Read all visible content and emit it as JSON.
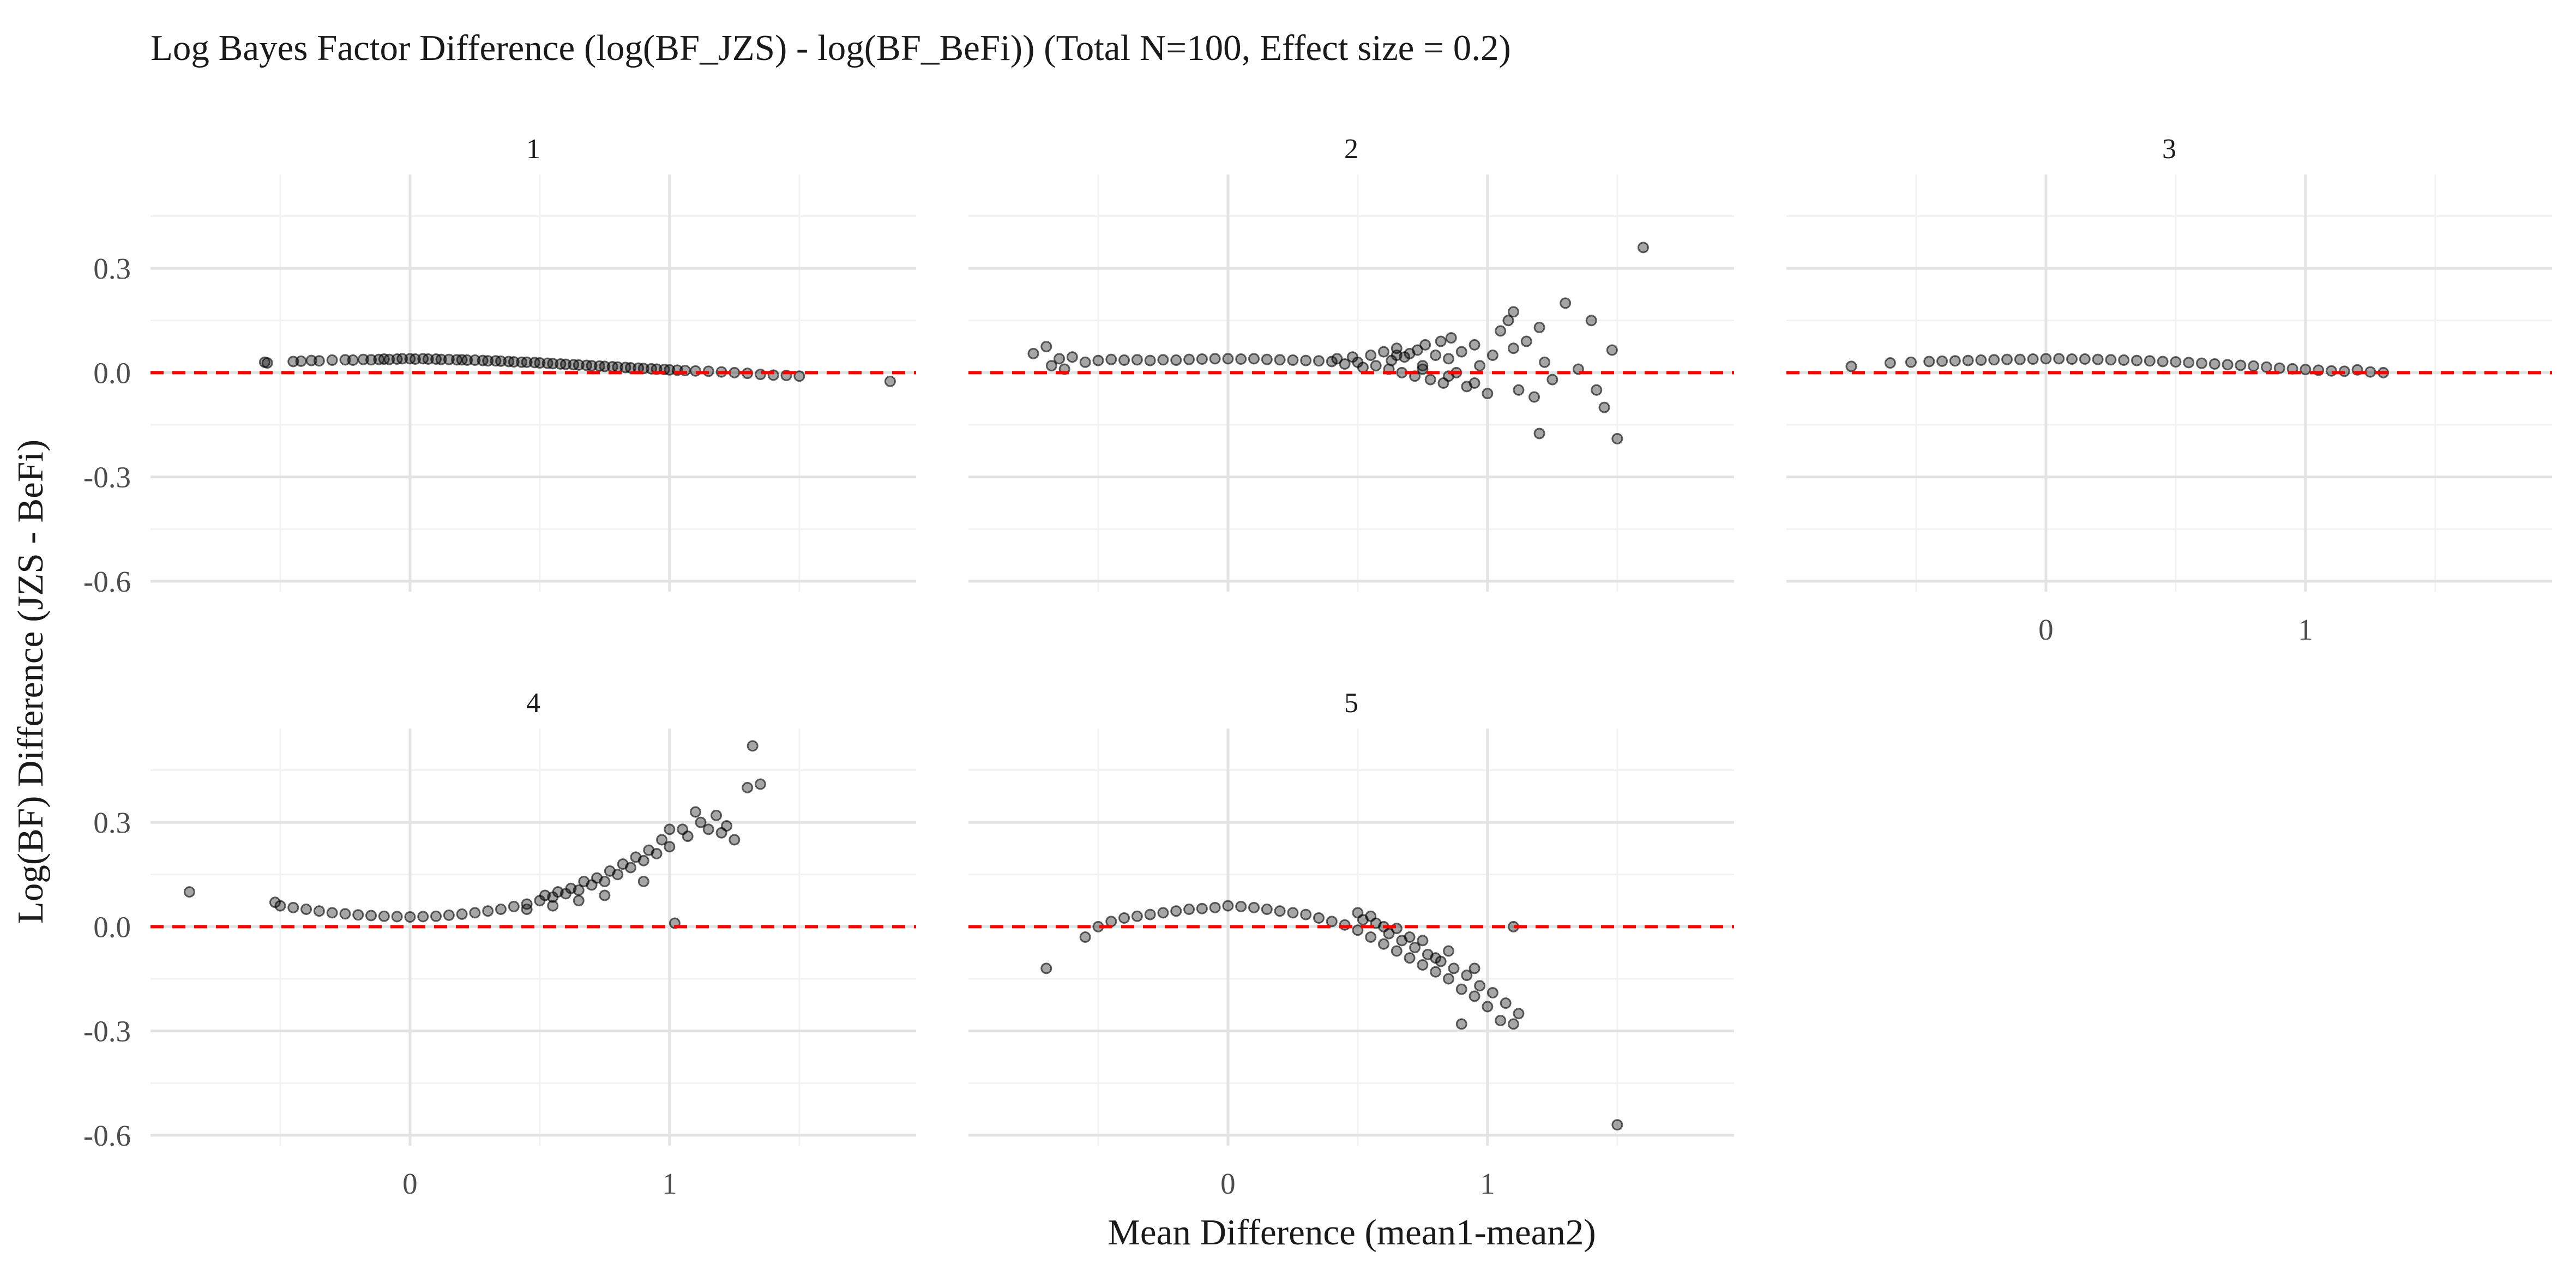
{
  "chart_data": {
    "type": "scatter",
    "title": "Log Bayes Factor Difference (log(BF_JZS) - log(BF_BeFi)) (Total N=100, Effect size = 0.2)",
    "xlabel": "Mean Difference (mean1-mean2)",
    "ylabel": "Log(BF) Difference (JZS - BeFi)",
    "xlim": [
      -1.0,
      1.95
    ],
    "ylim": [
      -0.63,
      0.57
    ],
    "x_ticks": [
      0,
      1
    ],
    "x_tick_labels": [
      "0",
      "1"
    ],
    "y_ticks": [
      0.3,
      0.0,
      -0.3,
      -0.6
    ],
    "y_tick_labels": [
      "0.3",
      "0.0",
      "-0.3",
      "-0.6"
    ],
    "grid": true,
    "reference_line": {
      "y": 0.0,
      "color": "#ff0000",
      "style": "dashed"
    },
    "point_color": "#000000",
    "point_opacity": 0.35,
    "panels": [
      {
        "label": "1",
        "points": [
          [
            -0.56,
            0.03
          ],
          [
            -0.55,
            0.028
          ],
          [
            -0.45,
            0.032
          ],
          [
            -0.42,
            0.033
          ],
          [
            -0.38,
            0.035
          ],
          [
            -0.35,
            0.034
          ],
          [
            -0.3,
            0.036
          ],
          [
            -0.25,
            0.037
          ],
          [
            -0.22,
            0.036
          ],
          [
            -0.18,
            0.038
          ],
          [
            -0.15,
            0.037
          ],
          [
            -0.12,
            0.038
          ],
          [
            -0.1,
            0.039
          ],
          [
            -0.08,
            0.038
          ],
          [
            -0.05,
            0.039
          ],
          [
            -0.03,
            0.04
          ],
          [
            0.0,
            0.04
          ],
          [
            0.02,
            0.039
          ],
          [
            0.05,
            0.04
          ],
          [
            0.07,
            0.039
          ],
          [
            0.1,
            0.039
          ],
          [
            0.12,
            0.038
          ],
          [
            0.15,
            0.038
          ],
          [
            0.18,
            0.037
          ],
          [
            0.2,
            0.037
          ],
          [
            0.22,
            0.036
          ],
          [
            0.25,
            0.036
          ],
          [
            0.28,
            0.035
          ],
          [
            0.3,
            0.034
          ],
          [
            0.33,
            0.034
          ],
          [
            0.35,
            0.033
          ],
          [
            0.38,
            0.032
          ],
          [
            0.4,
            0.031
          ],
          [
            0.43,
            0.03
          ],
          [
            0.45,
            0.03
          ],
          [
            0.48,
            0.029
          ],
          [
            0.5,
            0.028
          ],
          [
            0.53,
            0.027
          ],
          [
            0.55,
            0.026
          ],
          [
            0.58,
            0.025
          ],
          [
            0.6,
            0.024
          ],
          [
            0.63,
            0.023
          ],
          [
            0.65,
            0.022
          ],
          [
            0.68,
            0.021
          ],
          [
            0.7,
            0.02
          ],
          [
            0.73,
            0.019
          ],
          [
            0.75,
            0.018
          ],
          [
            0.78,
            0.017
          ],
          [
            0.8,
            0.016
          ],
          [
            0.83,
            0.015
          ],
          [
            0.85,
            0.014
          ],
          [
            0.88,
            0.013
          ],
          [
            0.9,
            0.012
          ],
          [
            0.93,
            0.011
          ],
          [
            0.95,
            0.01
          ],
          [
            0.98,
            0.009
          ],
          [
            1.0,
            0.008
          ],
          [
            1.03,
            0.007
          ],
          [
            1.06,
            0.006
          ],
          [
            1.1,
            0.005
          ],
          [
            1.15,
            0.004
          ],
          [
            1.2,
            0.002
          ],
          [
            1.25,
            0.0
          ],
          [
            1.3,
            -0.002
          ],
          [
            1.35,
            -0.005
          ],
          [
            1.4,
            -0.007
          ],
          [
            1.45,
            -0.008
          ],
          [
            1.5,
            -0.01
          ],
          [
            1.85,
            -0.025
          ]
        ]
      },
      {
        "label": "2",
        "points": [
          [
            -0.75,
            0.055
          ],
          [
            -0.7,
            0.075
          ],
          [
            -0.68,
            0.02
          ],
          [
            -0.65,
            0.04
          ],
          [
            -0.63,
            0.01
          ],
          [
            -0.6,
            0.045
          ],
          [
            -0.55,
            0.03
          ],
          [
            -0.5,
            0.035
          ],
          [
            -0.45,
            0.038
          ],
          [
            -0.4,
            0.036
          ],
          [
            -0.35,
            0.037
          ],
          [
            -0.3,
            0.035
          ],
          [
            -0.25,
            0.037
          ],
          [
            -0.2,
            0.036
          ],
          [
            -0.15,
            0.038
          ],
          [
            -0.1,
            0.039
          ],
          [
            -0.05,
            0.04
          ],
          [
            0.0,
            0.04
          ],
          [
            0.05,
            0.039
          ],
          [
            0.1,
            0.04
          ],
          [
            0.15,
            0.038
          ],
          [
            0.2,
            0.037
          ],
          [
            0.25,
            0.036
          ],
          [
            0.3,
            0.035
          ],
          [
            0.35,
            0.034
          ],
          [
            0.4,
            0.032
          ],
          [
            0.42,
            0.04
          ],
          [
            0.45,
            0.025
          ],
          [
            0.48,
            0.045
          ],
          [
            0.5,
            0.03
          ],
          [
            0.52,
            0.015
          ],
          [
            0.55,
            0.05
          ],
          [
            0.57,
            0.02
          ],
          [
            0.6,
            0.06
          ],
          [
            0.62,
            0.01
          ],
          [
            0.63,
            0.035
          ],
          [
            0.65,
            0.07
          ],
          [
            0.67,
            0.0
          ],
          [
            0.68,
            0.045
          ],
          [
            0.7,
            0.055
          ],
          [
            0.72,
            -0.01
          ],
          [
            0.73,
            0.065
          ],
          [
            0.75,
            0.02
          ],
          [
            0.76,
            0.08
          ],
          [
            0.78,
            -0.02
          ],
          [
            0.8,
            0.05
          ],
          [
            0.82,
            0.09
          ],
          [
            0.83,
            -0.03
          ],
          [
            0.85,
            0.04
          ],
          [
            0.86,
            0.1
          ],
          [
            0.88,
            0.0
          ],
          [
            0.9,
            0.06
          ],
          [
            0.92,
            -0.04
          ],
          [
            0.95,
            0.08
          ],
          [
            0.97,
            0.02
          ],
          [
            1.0,
            -0.06
          ],
          [
            1.02,
            0.05
          ],
          [
            1.05,
            0.12
          ],
          [
            1.08,
            0.15
          ],
          [
            1.1,
            0.175
          ],
          [
            1.12,
            -0.05
          ],
          [
            1.15,
            0.09
          ],
          [
            1.18,
            -0.07
          ],
          [
            1.2,
            0.13
          ],
          [
            1.22,
            0.03
          ],
          [
            1.25,
            -0.02
          ],
          [
            1.3,
            0.2
          ],
          [
            1.35,
            0.01
          ],
          [
            1.4,
            0.15
          ],
          [
            1.42,
            -0.05
          ],
          [
            1.45,
            -0.1
          ],
          [
            1.48,
            0.065
          ],
          [
            1.5,
            -0.19
          ],
          [
            1.6,
            0.36
          ],
          [
            1.2,
            -0.175
          ],
          [
            1.1,
            0.07
          ],
          [
            0.95,
            -0.03
          ],
          [
            0.85,
            -0.01
          ],
          [
            0.75,
            0.01
          ],
          [
            0.65,
            0.05
          ]
        ]
      },
      {
        "label": "3",
        "points": [
          [
            -0.75,
            0.018
          ],
          [
            -0.6,
            0.028
          ],
          [
            -0.52,
            0.03
          ],
          [
            -0.45,
            0.032
          ],
          [
            -0.4,
            0.033
          ],
          [
            -0.35,
            0.034
          ],
          [
            -0.3,
            0.035
          ],
          [
            -0.25,
            0.036
          ],
          [
            -0.2,
            0.037
          ],
          [
            -0.15,
            0.038
          ],
          [
            -0.1,
            0.038
          ],
          [
            -0.05,
            0.039
          ],
          [
            0.0,
            0.04
          ],
          [
            0.05,
            0.04
          ],
          [
            0.1,
            0.039
          ],
          [
            0.15,
            0.039
          ],
          [
            0.2,
            0.038
          ],
          [
            0.25,
            0.037
          ],
          [
            0.3,
            0.036
          ],
          [
            0.35,
            0.035
          ],
          [
            0.4,
            0.034
          ],
          [
            0.45,
            0.032
          ],
          [
            0.5,
            0.031
          ],
          [
            0.55,
            0.029
          ],
          [
            0.6,
            0.027
          ],
          [
            0.65,
            0.025
          ],
          [
            0.7,
            0.023
          ],
          [
            0.75,
            0.021
          ],
          [
            0.8,
            0.019
          ],
          [
            0.85,
            0.016
          ],
          [
            0.9,
            0.013
          ],
          [
            0.95,
            0.011
          ],
          [
            1.0,
            0.009
          ],
          [
            1.05,
            0.007
          ],
          [
            1.1,
            0.005
          ],
          [
            1.15,
            0.004
          ],
          [
            1.2,
            0.008
          ],
          [
            1.25,
            0.002
          ],
          [
            1.3,
            0.0
          ]
        ]
      },
      {
        "label": "4",
        "points": [
          [
            -0.85,
            0.1
          ],
          [
            -0.52,
            0.07
          ],
          [
            -0.5,
            0.06
          ],
          [
            -0.45,
            0.055
          ],
          [
            -0.4,
            0.05
          ],
          [
            -0.35,
            0.045
          ],
          [
            -0.3,
            0.04
          ],
          [
            -0.25,
            0.037
          ],
          [
            -0.2,
            0.034
          ],
          [
            -0.15,
            0.032
          ],
          [
            -0.1,
            0.03
          ],
          [
            -0.05,
            0.029
          ],
          [
            0.0,
            0.028
          ],
          [
            0.05,
            0.029
          ],
          [
            0.1,
            0.03
          ],
          [
            0.15,
            0.033
          ],
          [
            0.2,
            0.036
          ],
          [
            0.25,
            0.04
          ],
          [
            0.3,
            0.045
          ],
          [
            0.35,
            0.05
          ],
          [
            0.4,
            0.058
          ],
          [
            0.45,
            0.065
          ],
          [
            0.5,
            0.075
          ],
          [
            0.52,
            0.09
          ],
          [
            0.55,
            0.085
          ],
          [
            0.57,
            0.1
          ],
          [
            0.6,
            0.095
          ],
          [
            0.62,
            0.11
          ],
          [
            0.65,
            0.105
          ],
          [
            0.67,
            0.13
          ],
          [
            0.7,
            0.12
          ],
          [
            0.72,
            0.14
          ],
          [
            0.75,
            0.13
          ],
          [
            0.77,
            0.16
          ],
          [
            0.8,
            0.15
          ],
          [
            0.82,
            0.18
          ],
          [
            0.85,
            0.17
          ],
          [
            0.87,
            0.2
          ],
          [
            0.9,
            0.19
          ],
          [
            0.92,
            0.22
          ],
          [
            0.95,
            0.21
          ],
          [
            0.97,
            0.25
          ],
          [
            1.0,
            0.23
          ],
          [
            1.02,
            0.01
          ],
          [
            1.05,
            0.28
          ],
          [
            1.07,
            0.26
          ],
          [
            1.1,
            0.33
          ],
          [
            1.12,
            0.3
          ],
          [
            1.15,
            0.28
          ],
          [
            1.18,
            0.32
          ],
          [
            1.2,
            0.27
          ],
          [
            1.22,
            0.29
          ],
          [
            1.25,
            0.25
          ],
          [
            1.3,
            0.4
          ],
          [
            1.32,
            0.52
          ],
          [
            1.35,
            0.41
          ],
          [
            1.0,
            0.28
          ],
          [
            0.9,
            0.13
          ],
          [
            0.75,
            0.09
          ],
          [
            0.65,
            0.075
          ],
          [
            0.55,
            0.06
          ],
          [
            0.45,
            0.05
          ]
        ]
      },
      {
        "label": "5",
        "points": [
          [
            -0.7,
            -0.12
          ],
          [
            -0.55,
            -0.03
          ],
          [
            -0.5,
            0.0
          ],
          [
            -0.45,
            0.015
          ],
          [
            -0.4,
            0.025
          ],
          [
            -0.35,
            0.03
          ],
          [
            -0.3,
            0.035
          ],
          [
            -0.25,
            0.04
          ],
          [
            -0.2,
            0.045
          ],
          [
            -0.15,
            0.05
          ],
          [
            -0.1,
            0.052
          ],
          [
            -0.05,
            0.055
          ],
          [
            0.0,
            0.06
          ],
          [
            0.05,
            0.058
          ],
          [
            0.1,
            0.055
          ],
          [
            0.15,
            0.05
          ],
          [
            0.2,
            0.045
          ],
          [
            0.25,
            0.04
          ],
          [
            0.3,
            0.035
          ],
          [
            0.35,
            0.025
          ],
          [
            0.4,
            0.015
          ],
          [
            0.45,
            0.005
          ],
          [
            0.5,
            -0.01
          ],
          [
            0.52,
            0.02
          ],
          [
            0.55,
            -0.03
          ],
          [
            0.57,
            0.01
          ],
          [
            0.6,
            -0.05
          ],
          [
            0.62,
            -0.02
          ],
          [
            0.65,
            -0.07
          ],
          [
            0.67,
            -0.04
          ],
          [
            0.7,
            -0.09
          ],
          [
            0.72,
            -0.06
          ],
          [
            0.75,
            -0.11
          ],
          [
            0.77,
            -0.08
          ],
          [
            0.8,
            -0.13
          ],
          [
            0.82,
            -0.1
          ],
          [
            0.85,
            -0.15
          ],
          [
            0.87,
            -0.12
          ],
          [
            0.9,
            -0.18
          ],
          [
            0.92,
            -0.14
          ],
          [
            0.95,
            -0.2
          ],
          [
            0.97,
            -0.17
          ],
          [
            1.0,
            -0.23
          ],
          [
            1.02,
            -0.19
          ],
          [
            1.05,
            -0.27
          ],
          [
            1.07,
            -0.22
          ],
          [
            1.1,
            -0.28
          ],
          [
            1.12,
            -0.25
          ],
          [
            0.5,
            0.04
          ],
          [
            0.6,
            0.0
          ],
          [
            0.7,
            -0.03
          ],
          [
            0.8,
            -0.09
          ],
          [
            0.9,
            -0.28
          ],
          [
            1.1,
            0.0
          ],
          [
            1.5,
            -0.57
          ],
          [
            0.55,
            0.03
          ],
          [
            0.65,
            -0.005
          ],
          [
            0.75,
            -0.04
          ],
          [
            0.85,
            -0.07
          ],
          [
            0.95,
            -0.12
          ]
        ]
      }
    ]
  }
}
